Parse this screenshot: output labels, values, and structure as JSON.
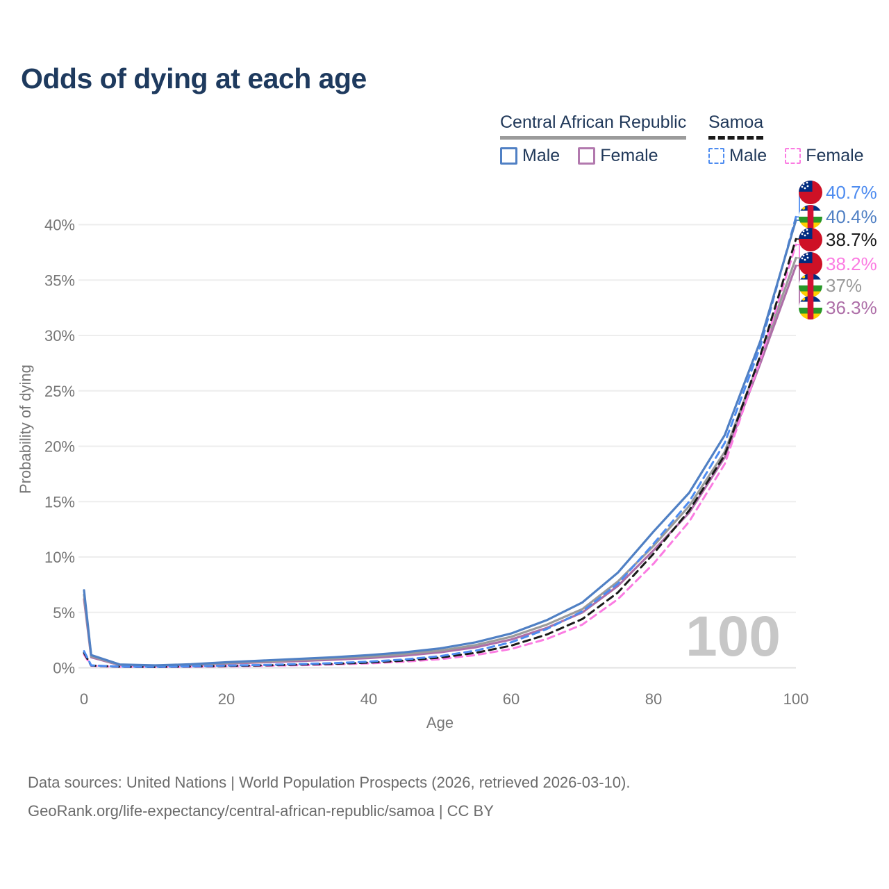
{
  "title": "Odds of dying at each age",
  "legend": {
    "groups": [
      {
        "label": "Central African Republic",
        "underline_style": "solid",
        "underline_color": "#9b9b9b",
        "items": [
          {
            "label": "Male",
            "color": "#5080c4",
            "dashed": false
          },
          {
            "label": "Female",
            "color": "#b279ae",
            "dashed": false
          }
        ]
      },
      {
        "label": "Samoa",
        "underline_style": "dashed",
        "underline_color": "#1a1a1a",
        "items": [
          {
            "label": "Male",
            "color": "#4e8cf0",
            "dashed": true
          },
          {
            "label": "Female",
            "color": "#fb7ce2",
            "dashed": true
          }
        ]
      }
    ]
  },
  "watermark": "100",
  "footer": {
    "line1": "Data sources: United Nations | World Population Prospects (2026, retrieved 2026-03-10).",
    "line2": "GeoRank.org/life-expectancy/central-african-republic/samoa | CC BY"
  },
  "chart_data": {
    "type": "line",
    "title": "Odds of dying at each age",
    "xlabel": "Age",
    "ylabel": "Probability of dying",
    "xlim": [
      0,
      100
    ],
    "ylim": [
      0,
      43
    ],
    "xticks": [
      0,
      20,
      40,
      60,
      80,
      100
    ],
    "yticks": [
      0,
      5,
      10,
      15,
      20,
      25,
      30,
      35,
      40
    ],
    "ytick_suffix": "%",
    "grid": "horizontal",
    "legend_position": "top-right",
    "x": [
      0,
      1,
      5,
      10,
      15,
      20,
      25,
      30,
      35,
      40,
      45,
      50,
      55,
      60,
      65,
      70,
      75,
      80,
      85,
      90,
      95,
      100
    ],
    "series": [
      {
        "name": "Central African Republic Female",
        "country": "Central African Republic",
        "sex": "Female",
        "color": "#ae6fa8",
        "dashed": false,
        "flag": "central-african-republic",
        "end_label": "36.3%",
        "values": [
          6.2,
          0.95,
          0.24,
          0.18,
          0.24,
          0.38,
          0.49,
          0.6,
          0.73,
          0.88,
          1.1,
          1.4,
          1.85,
          2.55,
          3.6,
          5.0,
          7.4,
          10.6,
          14.0,
          19.0,
          27.5,
          36.3
        ]
      },
      {
        "name": "Central African Republic Total",
        "country": "Central African Republic",
        "sex": "Both",
        "color": "#9b9b9b",
        "dashed": false,
        "flag": "central-african-republic",
        "end_label": "37%",
        "values": [
          6.6,
          1.05,
          0.27,
          0.2,
          0.28,
          0.44,
          0.57,
          0.7,
          0.85,
          1.0,
          1.25,
          1.55,
          2.05,
          2.8,
          3.9,
          5.3,
          7.8,
          11.0,
          14.6,
          19.5,
          28.0,
          37.0
        ]
      },
      {
        "name": "Samoa Female",
        "country": "Samoa",
        "sex": "Female",
        "color": "#fb7ce2",
        "dashed": true,
        "flag": "samoa",
        "end_label": "38.2%",
        "values": [
          1.2,
          0.18,
          0.08,
          0.06,
          0.09,
          0.14,
          0.18,
          0.23,
          0.3,
          0.4,
          0.55,
          0.78,
          1.15,
          1.7,
          2.6,
          3.9,
          6.2,
          9.4,
          13.2,
          18.4,
          27.8,
          38.2
        ]
      },
      {
        "name": "Samoa Total",
        "country": "Samoa",
        "sex": "Both",
        "color": "#1a1a1a",
        "dashed": true,
        "flag": "samoa",
        "end_label": "38.7%",
        "values": [
          1.35,
          0.2,
          0.09,
          0.07,
          0.11,
          0.17,
          0.22,
          0.28,
          0.36,
          0.47,
          0.65,
          0.92,
          1.35,
          2.0,
          3.0,
          4.4,
          6.8,
          10.3,
          14.2,
          19.2,
          28.2,
          38.7
        ]
      },
      {
        "name": "Samoa Male",
        "country": "Samoa",
        "sex": "Male",
        "color": "#4e8cf0",
        "dashed": true,
        "flag": "samoa",
        "end_label": "40.7%",
        "values": [
          1.5,
          0.22,
          0.1,
          0.08,
          0.13,
          0.2,
          0.26,
          0.33,
          0.42,
          0.55,
          0.75,
          1.05,
          1.55,
          2.3,
          3.5,
          5.1,
          7.6,
          11.2,
          15.0,
          20.3,
          29.0,
          40.7
        ]
      },
      {
        "name": "Central African Republic Male",
        "country": "Central African Republic",
        "sex": "Male",
        "color": "#5080c4",
        "dashed": false,
        "flag": "central-african-republic",
        "end_label": "40.4%",
        "values": [
          7.0,
          1.15,
          0.3,
          0.22,
          0.32,
          0.5,
          0.65,
          0.8,
          0.95,
          1.15,
          1.4,
          1.75,
          2.3,
          3.1,
          4.3,
          5.9,
          8.6,
          12.3,
          15.8,
          21.0,
          29.5,
          40.4
        ]
      }
    ],
    "flag_colors": {
      "samoa": {
        "red": "#CE1126",
        "blue": "#002B7F",
        "star": "#ffffff"
      },
      "central-african-republic": {
        "blue": "#003082",
        "white": "#ffffff",
        "green": "#289728",
        "yellow": "#FFCE00",
        "red": "#D21034"
      }
    }
  }
}
